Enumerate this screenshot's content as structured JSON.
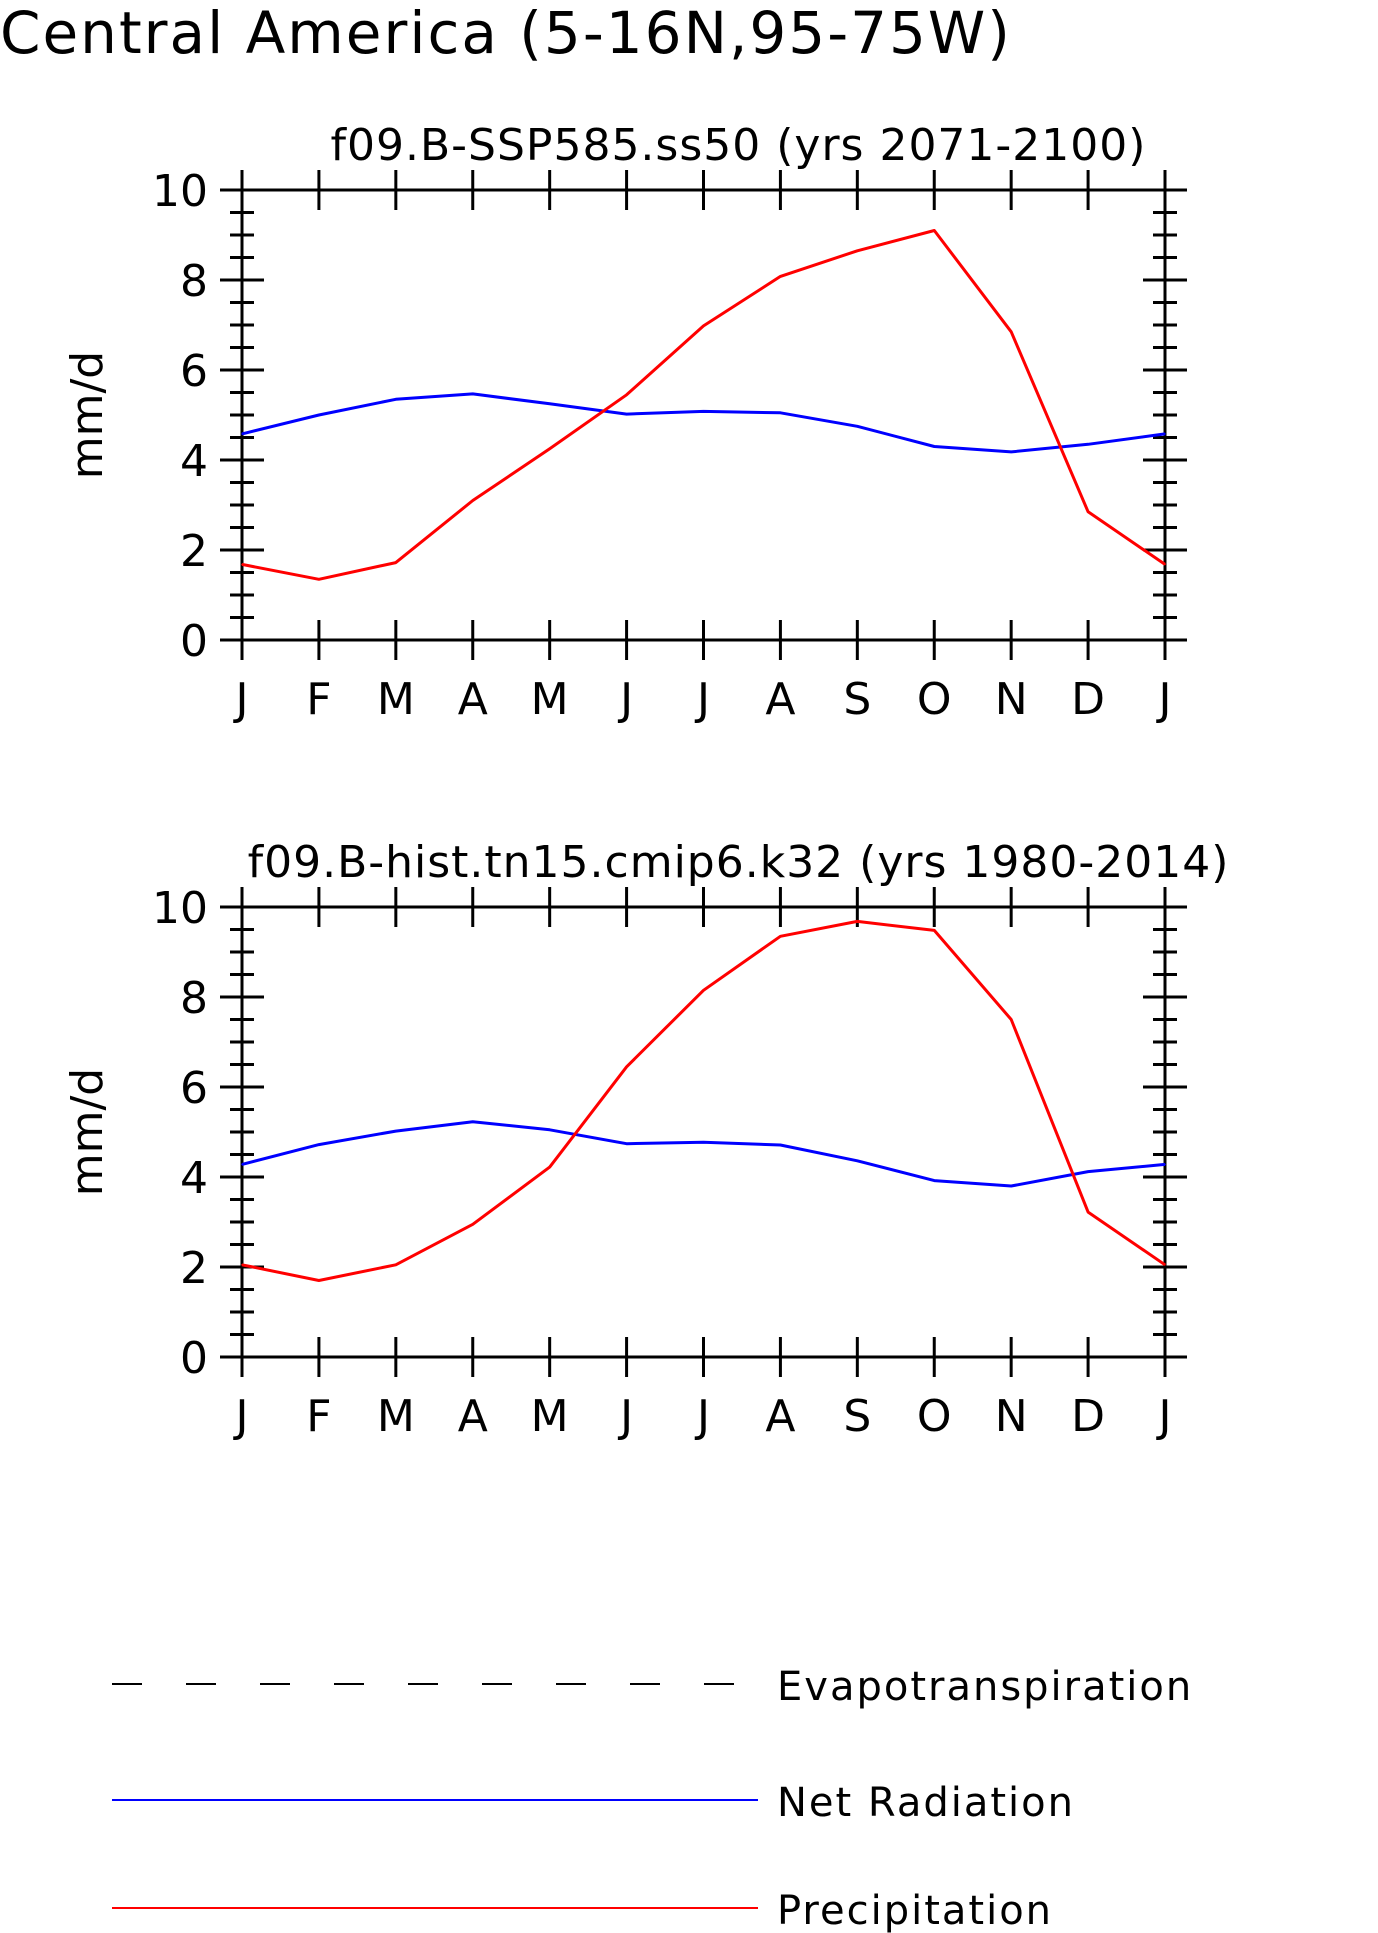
{
  "title": "Central America (5-16N,95-75W)",
  "colors": {
    "net_radiation": "#0000ff",
    "precipitation": "#ff0000",
    "evapotranspiration": "#000000",
    "frame": "#000000"
  },
  "legend": {
    "items": [
      {
        "label": "Evapotranspiration",
        "style": "dashed",
        "color": "#000000"
      },
      {
        "label": "Net Radiation",
        "style": "solid",
        "color": "#0000ff"
      },
      {
        "label": "Precipitation",
        "style": "solid",
        "color": "#ff0000"
      }
    ]
  },
  "chart_data": [
    {
      "type": "line",
      "title": "f09.B-SSP585.ss50 (yrs 2071-2100)",
      "ylabel": "mm/d",
      "xlabel": "",
      "ylim": [
        0,
        10
      ],
      "yticks": [
        "0",
        "2",
        "4",
        "6",
        "8",
        "10"
      ],
      "categories": [
        "J",
        "F",
        "M",
        "A",
        "M",
        "J",
        "J",
        "A",
        "S",
        "O",
        "N",
        "D",
        "J"
      ],
      "grid": false,
      "series": [
        {
          "name": "Net Radiation",
          "color": "#0000ff",
          "values": [
            4.58,
            5.0,
            5.35,
            5.47,
            5.25,
            5.02,
            5.08,
            5.05,
            4.75,
            4.3,
            4.18,
            4.35,
            4.58
          ]
        },
        {
          "name": "Precipitation",
          "color": "#ff0000",
          "values": [
            1.68,
            1.35,
            1.72,
            3.1,
            4.25,
            5.45,
            6.98,
            8.08,
            8.65,
            9.1,
            6.85,
            2.85,
            1.68
          ]
        }
      ]
    },
    {
      "type": "line",
      "title": "f09.B-hist.tn15.cmip6.k32 (yrs 1980-2014)",
      "ylabel": "mm/d",
      "xlabel": "",
      "ylim": [
        0,
        10
      ],
      "yticks": [
        "0",
        "2",
        "4",
        "6",
        "8",
        "10"
      ],
      "categories": [
        "J",
        "F",
        "M",
        "A",
        "M",
        "J",
        "J",
        "A",
        "S",
        "O",
        "N",
        "D",
        "J"
      ],
      "grid": false,
      "series": [
        {
          "name": "Net Radiation",
          "color": "#0000ff",
          "values": [
            4.28,
            4.72,
            5.02,
            5.23,
            5.05,
            4.74,
            4.77,
            4.71,
            4.36,
            3.92,
            3.8,
            4.12,
            4.28
          ]
        },
        {
          "name": "Precipitation",
          "color": "#ff0000",
          "values": [
            2.05,
            1.7,
            2.05,
            2.95,
            4.22,
            6.45,
            8.15,
            9.35,
            9.68,
            9.48,
            7.5,
            3.22,
            2.05
          ]
        }
      ]
    }
  ]
}
